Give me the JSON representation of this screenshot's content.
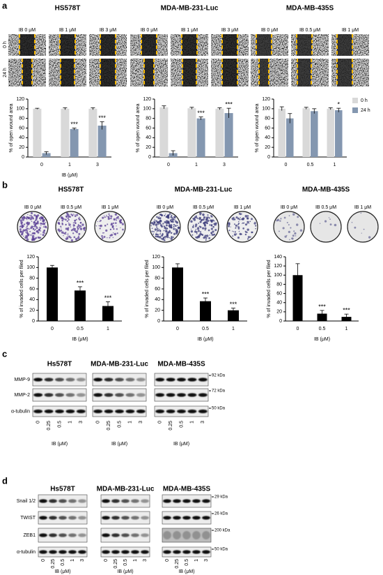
{
  "panels": [
    {
      "label": "a",
      "titles": [
        "HS578T",
        "MDA-MB-231-Luc",
        "MDA-MB-435S"
      ],
      "image_labels": [
        [
          "IB 0 μM",
          "IB 1 μM",
          "IB 3 μM"
        ],
        [
          "IB 0 μM",
          "IB 1 μM",
          "IB 3 μM"
        ],
        [
          "IB 0 μM",
          "IB 0.5 μM",
          "IB 1 μM"
        ]
      ],
      "row_labels": [
        "0 h",
        "24 h"
      ]
    },
    {
      "label": "b",
      "titles": [
        "HS578T",
        "MDA-MB-231-Luc",
        "MDA-MB-435S"
      ],
      "image_labels": [
        [
          "IB  0 μM",
          "IB  0.5 μM",
          "IB  1 μM"
        ],
        [
          "IB  0 μM",
          "IB  0.5 μM",
          "IB  1 μM"
        ],
        [
          "IB  0 μM",
          "IB  0.5 μM",
          "IB  1 μM"
        ]
      ]
    },
    {
      "label": "c",
      "titles": [
        "Hs578T",
        "MDA-MB-231-Luc",
        "MDA-MB-435S"
      ],
      "rows": [
        "MMP-9",
        "MMP-2",
        "α-tubulin"
      ],
      "markers": [
        "92 kDa",
        "72 kDa",
        "50 kDa"
      ],
      "lanes": [
        "0",
        "0.25",
        "0.5",
        "1",
        "3"
      ],
      "xlabel": "IB (μM)"
    },
    {
      "label": "d",
      "titles": [
        "Hs578T",
        "MDA-MB-231-Luc",
        "MDA-MB-435S"
      ],
      "rows": [
        "Snail 1/2",
        "TWIST",
        "ZEB1",
        "α-tubulin"
      ],
      "markers": [
        "29 kDa",
        "26 kDa",
        "200 kDa",
        "50 kDa"
      ],
      "lanes": [
        "0",
        "0.25",
        "0.5",
        "1",
        "3"
      ],
      "xlabel": "IB (μM)"
    }
  ],
  "chart_data": [
    {
      "type": "bar",
      "categories": [
        "0",
        "1",
        "3"
      ],
      "ylabel": "% of open wound area",
      "xlabel": "IB (μM)",
      "ylim": [
        0,
        120
      ],
      "yticks": [
        0,
        20,
        40,
        60,
        80,
        100,
        120
      ],
      "series": [
        {
          "color": "#d9d9d9",
          "values": [
            100,
            100,
            100
          ],
          "errors": [
            1,
            2,
            2
          ]
        },
        {
          "color": "#8497b0",
          "values": [
            8,
            58,
            65
          ],
          "errors": [
            3,
            2,
            8
          ],
          "significance": [
            null,
            "***",
            "***"
          ]
        }
      ]
    },
    {
      "type": "bar",
      "categories": [
        "0",
        "1",
        "3"
      ],
      "ylabel": "% of open wound area",
      "ylim": [
        0,
        120
      ],
      "yticks": [
        0,
        20,
        40,
        60,
        80,
        100,
        120
      ],
      "series": [
        {
          "color": "#d9d9d9",
          "values": [
            103,
            101,
            100
          ],
          "errors": [
            3,
            2,
            2
          ]
        },
        {
          "color": "#8497b0",
          "values": [
            8,
            80,
            91
          ],
          "errors": [
            5,
            3,
            10
          ],
          "significance": [
            null,
            "***",
            "***"
          ]
        }
      ]
    },
    {
      "type": "bar",
      "categories": [
        "0",
        "0.5",
        "1"
      ],
      "ylabel": "% of open wound area",
      "ylim": [
        0,
        120
      ],
      "yticks": [
        0,
        20,
        40,
        60,
        80,
        100,
        120
      ],
      "legend": "right",
      "series": [
        {
          "name": "0 h",
          "color": "#d9d9d9",
          "values": [
            100,
            101,
            100
          ],
          "errors": [
            4,
            2,
            2
          ]
        },
        {
          "name": "24 h",
          "color": "#8497b0",
          "values": [
            80,
            95,
            97
          ],
          "errors": [
            10,
            5,
            4
          ],
          "significance": [
            null,
            null,
            "*"
          ]
        }
      ]
    },
    {
      "type": "bar",
      "categories": [
        "0",
        "0.5",
        "1"
      ],
      "ylabel": "% of invaded cells per filed",
      "xlabel": "IB (μM)",
      "ylim": [
        0,
        120
      ],
      "yticks": [
        0,
        20,
        40,
        60,
        80,
        100,
        120
      ],
      "color": "#000000",
      "values": [
        100,
        57,
        28
      ],
      "errors": [
        4,
        7,
        8
      ],
      "significance": [
        null,
        "***",
        "***"
      ]
    },
    {
      "type": "bar",
      "categories": [
        "0",
        "0.5",
        "1"
      ],
      "ylabel": "% of invaded cells per filed",
      "xlabel": "IB (μM)",
      "ylim": [
        0,
        120
      ],
      "yticks": [
        0,
        20,
        40,
        60,
        80,
        100,
        120
      ],
      "color": "#000000",
      "values": [
        100,
        37,
        20
      ],
      "errors": [
        7,
        6,
        4
      ],
      "significance": [
        null,
        "***",
        "***"
      ]
    },
    {
      "type": "bar",
      "categories": [
        "0",
        "0.5",
        "1"
      ],
      "ylabel": "% of invaded cells per filed",
      "xlabel": "IB (μM)",
      "ylim": [
        0,
        140
      ],
      "yticks": [
        0,
        20,
        40,
        60,
        80,
        100,
        120,
        140
      ],
      "color": "#000000",
      "values": [
        100,
        16,
        9
      ],
      "errors": [
        25,
        7,
        6
      ],
      "significance": [
        null,
        "***",
        "***"
      ]
    }
  ]
}
